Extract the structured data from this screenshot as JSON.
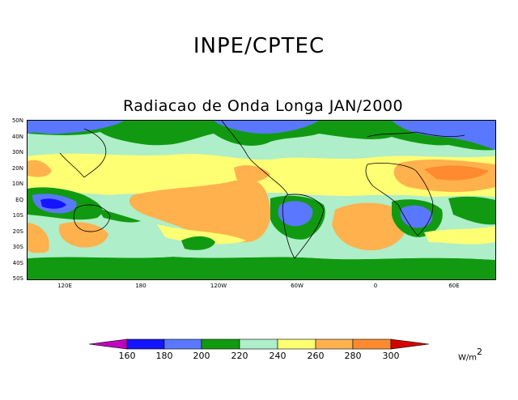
{
  "header": {
    "title": "INPE/CPTEC"
  },
  "map": {
    "title": "Radiacao de Onda Longa JAN/2000",
    "lat_labels": [
      "50N",
      "40N",
      "30N",
      "20N",
      "10N",
      "EQ",
      "10S",
      "20S",
      "30S",
      "40S",
      "50S"
    ],
    "lon_labels": [
      "120E",
      "180",
      "120W",
      "60W",
      "0",
      "60E"
    ]
  },
  "legend": {
    "levels": [
      "160",
      "180",
      "200",
      "220",
      "240",
      "260",
      "280",
      "300"
    ],
    "units": "W/m",
    "units_sup": "2",
    "colors": {
      "below_160": "#c000c0",
      "160_180": "#1414ff",
      "180_200": "#5a78ff",
      "200_220": "#119a11",
      "220_240": "#aeeec8",
      "240_260": "#ffff73",
      "260_280": "#ffb14d",
      "280_300": "#ff8a30",
      "above_300": "#d40000"
    }
  }
}
